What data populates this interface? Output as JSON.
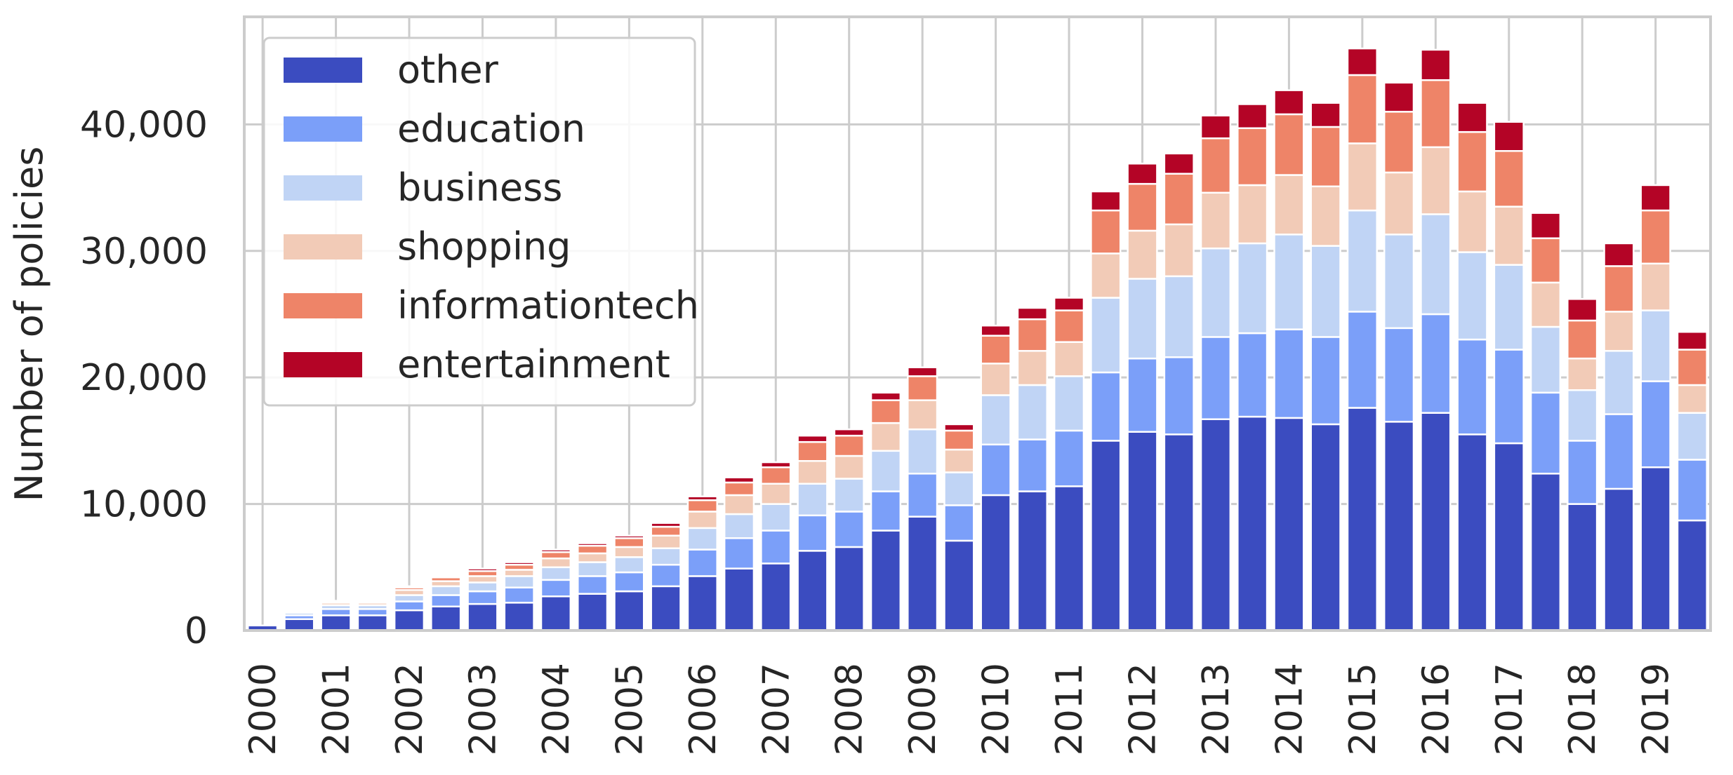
{
  "chart_data": {
    "type": "bar",
    "stacked": true,
    "title": "",
    "xlabel": "",
    "ylabel": "Number of policies",
    "ylim": [
      0,
      48500
    ],
    "yticks": [
      0,
      10000,
      20000,
      30000,
      40000
    ],
    "ytick_labels": [
      "0",
      "10,000",
      "20,000",
      "30,000",
      "40,000"
    ],
    "x_tick_labels": [
      "2000",
      "2001",
      "2002",
      "2003",
      "2004",
      "2005",
      "2006",
      "2007",
      "2008",
      "2009",
      "2010",
      "2011",
      "2012",
      "2013",
      "2014",
      "2015",
      "2016",
      "2017",
      "2018",
      "2019"
    ],
    "categories": [
      "2000a",
      "2000b",
      "2001a",
      "2001b",
      "2002a",
      "2002b",
      "2003a",
      "2003b",
      "2004a",
      "2004b",
      "2005a",
      "2005b",
      "2006a",
      "2006b",
      "2007a",
      "2007b",
      "2008a",
      "2008b",
      "2009a",
      "2009b",
      "2010a",
      "2010b",
      "2011a",
      "2011b",
      "2012a",
      "2012b",
      "2013a",
      "2013b",
      "2014a",
      "2014b",
      "2015a",
      "2015b",
      "2016a",
      "2016b",
      "2017a",
      "2017b",
      "2018a",
      "2018b",
      "2019a",
      "2019b"
    ],
    "grid": true,
    "legend_position": "top-left",
    "series": [
      {
        "name": "other",
        "color": "#3b4cc0",
        "values": [
          400,
          900,
          1200,
          1200,
          1600,
          1900,
          2100,
          2200,
          2700,
          2900,
          3100,
          3500,
          4300,
          4900,
          5300,
          6300,
          6600,
          7900,
          9000,
          7100,
          10700,
          11000,
          11400,
          15000,
          15700,
          15500,
          16700,
          16900,
          16800,
          16300,
          17600,
          16500,
          17200,
          15500,
          14800,
          12400,
          10000,
          11200,
          12900,
          8700
        ]
      },
      {
        "name": "education",
        "color": "#7b9ff9",
        "values": [
          0,
          300,
          500,
          500,
          700,
          900,
          1000,
          1200,
          1300,
          1400,
          1500,
          1700,
          2100,
          2400,
          2600,
          2800,
          2800,
          3100,
          3400,
          2800,
          4000,
          4100,
          4400,
          5400,
          5800,
          6100,
          6500,
          6600,
          7000,
          6900,
          7600,
          7400,
          7800,
          7500,
          7400,
          6400,
          5000,
          5900,
          6800,
          4800
        ]
      },
      {
        "name": "business",
        "color": "#c0d4f5",
        "values": [
          0,
          200,
          300,
          300,
          500,
          700,
          700,
          900,
          1000,
          1100,
          1200,
          1300,
          1700,
          1900,
          2100,
          2500,
          2600,
          3200,
          3500,
          2600,
          3900,
          4300,
          4300,
          5900,
          6300,
          6400,
          7000,
          7100,
          7500,
          7200,
          8000,
          7400,
          7900,
          6900,
          6700,
          5200,
          4000,
          5000,
          5600,
          3700
        ]
      },
      {
        "name": "shopping",
        "color": "#f2cbb7",
        "values": [
          0,
          100,
          200,
          200,
          400,
          400,
          500,
          500,
          700,
          700,
          800,
          1000,
          1300,
          1500,
          1600,
          1800,
          1800,
          2200,
          2300,
          1800,
          2500,
          2700,
          2700,
          3500,
          3800,
          4100,
          4400,
          4600,
          4700,
          4700,
          5300,
          4900,
          5300,
          4800,
          4600,
          3500,
          2500,
          3100,
          3700,
          2200
        ]
      },
      {
        "name": "informationtech",
        "color": "#ee8468",
        "values": [
          0,
          50,
          100,
          100,
          200,
          300,
          400,
          400,
          500,
          600,
          700,
          700,
          900,
          1000,
          1300,
          1500,
          1600,
          1800,
          1900,
          1500,
          2200,
          2500,
          2500,
          3400,
          3700,
          4000,
          4300,
          4500,
          4800,
          4700,
          5400,
          4800,
          5300,
          4700,
          4400,
          3500,
          3000,
          3600,
          4200,
          2800
        ]
      },
      {
        "name": "entertainment",
        "color": "#b40426",
        "values": [
          0,
          50,
          50,
          50,
          100,
          100,
          200,
          200,
          200,
          200,
          200,
          300,
          300,
          400,
          400,
          500,
          500,
          600,
          700,
          500,
          800,
          900,
          1000,
          1500,
          1600,
          1600,
          1800,
          1900,
          1900,
          1900,
          2100,
          2300,
          2400,
          2300,
          2300,
          2000,
          1700,
          1800,
          2000,
          1400
        ]
      }
    ]
  }
}
